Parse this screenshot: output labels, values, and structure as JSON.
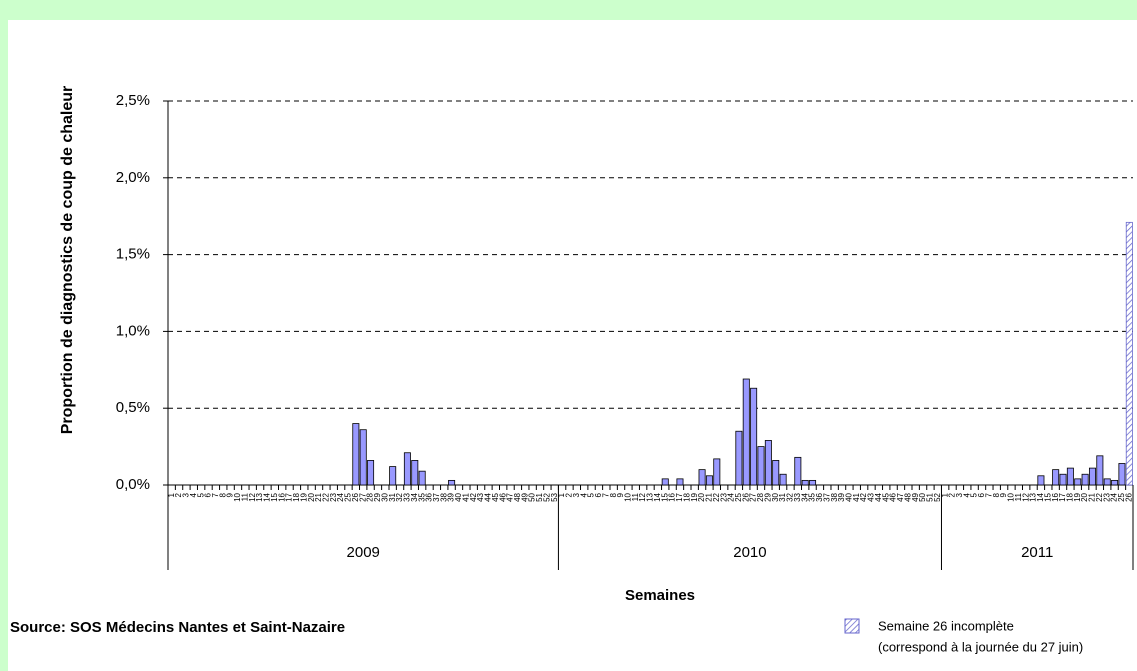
{
  "chart_data": {
    "type": "bar",
    "y_label": "Proportion de diagnostics de coup de chaleur",
    "x_label": "Semaines",
    "source": "Source: SOS Médecins Nantes et Saint-Nazaire",
    "color": "#9999ff",
    "ylim": [
      0,
      2.5
    ],
    "yticks": [
      {
        "value": 0,
        "label": "0,0%"
      },
      {
        "value": 0.5,
        "label": "0,5%"
      },
      {
        "value": 1,
        "label": "1,0%"
      },
      {
        "value": 1.5,
        "label": "1,5%"
      },
      {
        "value": 2,
        "label": "2,0%"
      },
      {
        "value": 2.5,
        "label": "2,5%"
      }
    ],
    "grid": true,
    "groups": [
      {
        "label": "2009",
        "categories": [
          "1",
          "2",
          "3",
          "4",
          "5",
          "6",
          "7",
          "8",
          "9",
          "10",
          "11",
          "12",
          "13",
          "14",
          "15",
          "16",
          "17",
          "18",
          "19",
          "20",
          "21",
          "22",
          "23",
          "24",
          "25",
          "26",
          "27",
          "28",
          "29",
          "30",
          "31",
          "32",
          "33",
          "34",
          "35",
          "36",
          "37",
          "38",
          "39",
          "40",
          "41",
          "42",
          "43",
          "44",
          "45",
          "46",
          "47",
          "48",
          "49",
          "50",
          "51",
          "52",
          "53"
        ],
        "values": [
          0,
          0,
          0,
          0,
          0,
          0,
          0,
          0,
          0,
          0,
          0,
          0,
          0,
          0,
          0,
          0,
          0,
          0,
          0,
          0,
          0,
          0,
          0,
          0,
          0,
          0.4,
          0.36,
          0.16,
          0,
          0,
          0.12,
          0,
          0.21,
          0.16,
          0.09,
          0,
          0,
          0,
          0.03,
          0,
          0,
          0,
          0,
          0,
          0,
          0,
          0,
          0,
          0,
          0,
          0,
          0,
          0
        ]
      },
      {
        "label": "2010",
        "categories": [
          "1",
          "2",
          "3",
          "4",
          "5",
          "6",
          "7",
          "8",
          "9",
          "10",
          "11",
          "12",
          "13",
          "14",
          "15",
          "16",
          "17",
          "18",
          "19",
          "20",
          "21",
          "22",
          "23",
          "24",
          "25",
          "26",
          "27",
          "28",
          "29",
          "30",
          "31",
          "32",
          "33",
          "34",
          "35",
          "36",
          "37",
          "38",
          "39",
          "40",
          "41",
          "42",
          "43",
          "44",
          "45",
          "46",
          "47",
          "48",
          "49",
          "50",
          "51",
          "52"
        ],
        "values": [
          0,
          0,
          0,
          0,
          0,
          0,
          0,
          0,
          0,
          0,
          0,
          0,
          0,
          0,
          0.04,
          0,
          0.04,
          0,
          0,
          0.1,
          0.06,
          0.17,
          0,
          0,
          0.35,
          0.69,
          0.63,
          0.25,
          0.29,
          0.16,
          0.07,
          0,
          0.18,
          0.03,
          0.03,
          0,
          0,
          0,
          0,
          0,
          0,
          0,
          0,
          0,
          0,
          0,
          0,
          0,
          0,
          0,
          0,
          0
        ]
      },
      {
        "label": "2011",
        "categories": [
          "1",
          "2",
          "3",
          "4",
          "5",
          "6",
          "7",
          "8",
          "9",
          "10",
          "11",
          "12",
          "13",
          "14",
          "15",
          "16",
          "17",
          "18",
          "19",
          "20",
          "21",
          "22",
          "23",
          "24",
          "25",
          "26"
        ],
        "values": [
          0,
          0,
          0,
          0,
          0,
          0,
          0,
          0,
          0,
          0,
          0,
          0,
          0,
          0.06,
          0,
          0.1,
          0.07,
          0.11,
          0.04,
          0.07,
          0.11,
          0.19,
          0.04,
          0.03,
          0.14,
          1.71
        ],
        "incomplete": {
          "week": "26",
          "label": "Semaine 26 incomplète",
          "note": "(correspond à la journée du 27 juin)"
        }
      }
    ]
  }
}
